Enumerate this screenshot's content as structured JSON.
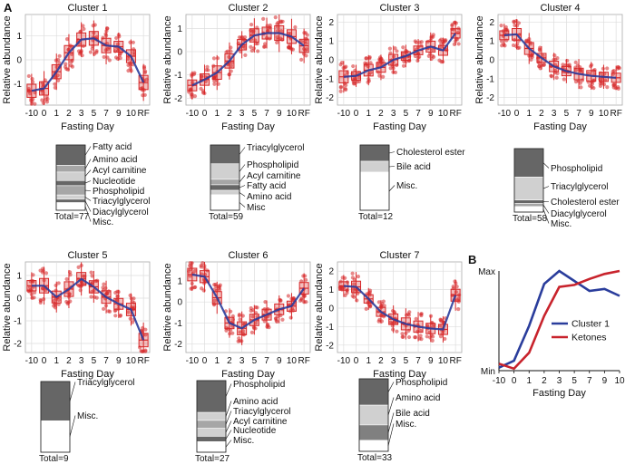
{
  "panel_labels": {
    "a": "A",
    "b": "B"
  },
  "chart_data": [
    {
      "type": "box",
      "title": "Cluster 1",
      "xlabel": "Fasting Day",
      "ylabel": "Relative abundance",
      "x_ticks": [
        "-10",
        "0",
        "1",
        "2",
        "3",
        "5",
        "7",
        "9",
        "10",
        "RF"
      ],
      "y_ticks": [
        "-1",
        "0",
        "1"
      ],
      "ylim": [
        -1.9,
        1.9
      ],
      "trend": [
        -1.3,
        -1.2,
        -0.5,
        0.3,
        0.85,
        0.9,
        0.6,
        0.55,
        0.15,
        -0.95
      ],
      "box_color": "#d62728",
      "trend_color": "#2a3d9c",
      "composition": {
        "total": "Total=77",
        "segments": [
          {
            "label": "Fatty acid",
            "value": 24,
            "color": "#666666"
          },
          {
            "label": "Amino acid",
            "value": 8,
            "color": "#a6a6a6"
          },
          {
            "label": "Acyl carnitine",
            "value": 10,
            "color": "#d0d0d0"
          },
          {
            "label": "Nucleotide",
            "value": 6,
            "color": "#666666"
          },
          {
            "label": "Phospholipid",
            "value": 11,
            "color": "#a6a6a6"
          },
          {
            "label": "Triacylglycerol",
            "value": 5,
            "color": "#d0d0d0"
          },
          {
            "label": "Diacylglycerol",
            "value": 4,
            "color": "#666666"
          },
          {
            "label": "Misc.",
            "value": 9,
            "color": "#ffffff"
          }
        ]
      }
    },
    {
      "type": "box",
      "title": "Cluster 2",
      "xlabel": "Fasting Day",
      "ylabel": "Relative abundance",
      "x_ticks": [
        "-10",
        "0",
        "1",
        "2",
        "3",
        "5",
        "7",
        "9",
        "10",
        "RF"
      ],
      "y_ticks": [
        "-2",
        "-1",
        "0",
        "1"
      ],
      "ylim": [
        -2.3,
        1.6
      ],
      "trend": [
        -1.45,
        -1.2,
        -0.9,
        -0.4,
        0.3,
        0.7,
        0.8,
        0.8,
        0.65,
        0.25
      ],
      "box_color": "#d62728",
      "trend_color": "#2a3d9c",
      "composition": {
        "total": "Total=59",
        "segments": [
          {
            "label": "Triacylglycerol",
            "value": 17,
            "color": "#666666"
          },
          {
            "label": "Phospholipid",
            "value": 14,
            "color": "#d0d0d0"
          },
          {
            "label": "Acyl carnitine",
            "value": 5,
            "color": "#a6a6a6"
          },
          {
            "label": "Fatty acid",
            "value": 5,
            "color": "#666666"
          },
          {
            "label": "Amino acid",
            "value": 4,
            "color": "#d0d0d0"
          },
          {
            "label": "Misc",
            "value": 14,
            "color": "#ffffff"
          }
        ]
      }
    },
    {
      "type": "box",
      "title": "Cluster 3",
      "xlabel": "Fasting Day",
      "ylabel": "Relative abundance",
      "x_ticks": [
        "-10",
        "0",
        "1",
        "2",
        "3",
        "5",
        "7",
        "9",
        "10",
        "RF"
      ],
      "y_ticks": [
        "-2",
        "-1",
        "0",
        "1",
        "2"
      ],
      "ylim": [
        -2.4,
        2.4
      ],
      "trend": [
        -0.9,
        -0.85,
        -0.55,
        -0.4,
        0.0,
        0.2,
        0.5,
        0.7,
        0.5,
        1.4
      ],
      "box_color": "#d62728",
      "trend_color": "#2a3d9c",
      "composition": {
        "total": "Total=12",
        "segments": [
          {
            "label": "Cholesterol ester",
            "value": 3,
            "color": "#666666"
          },
          {
            "label": "Bile acid",
            "value": 2,
            "color": "#d0d0d0"
          },
          {
            "label": "Misc.",
            "value": 7,
            "color": "#ffffff"
          }
        ]
      }
    },
    {
      "type": "box",
      "title": "Cluster 4",
      "xlabel": "Fasting Day",
      "ylabel": "Relative abundance",
      "x_ticks": [
        "-10",
        "0",
        "1",
        "2",
        "3",
        "5",
        "7",
        "9",
        "10",
        "RF"
      ],
      "y_ticks": [
        "-2",
        "-1",
        "0",
        "1",
        "2"
      ],
      "ylim": [
        -2.4,
        2.4
      ],
      "trend": [
        1.3,
        1.35,
        0.6,
        0.1,
        -0.35,
        -0.6,
        -0.75,
        -0.85,
        -0.9,
        -0.95
      ],
      "box_color": "#d62728",
      "trend_color": "#2a3d9c",
      "composition": {
        "total": "Total=58",
        "segments": [
          {
            "label": "Phospholipid",
            "value": 26,
            "color": "#666666"
          },
          {
            "label": "Triacylglycerol",
            "value": 21,
            "color": "#d0d0d0"
          },
          {
            "label": "Cholesterol ester",
            "value": 3,
            "color": "#666666"
          },
          {
            "label": "Diacylglycerol",
            "value": 3,
            "color": "#a6a6a6"
          },
          {
            "label": "Misc.",
            "value": 5,
            "color": "#ffffff"
          }
        ]
      }
    },
    {
      "type": "box",
      "title": "Cluster 5",
      "xlabel": "Fasting Day",
      "ylabel": "Relative abundance",
      "x_ticks": [
        "-10",
        "0",
        "1",
        "2",
        "3",
        "5",
        "7",
        "9",
        "10",
        "RF"
      ],
      "y_ticks": [
        "-2",
        "-1",
        "0",
        "1"
      ],
      "ylim": [
        -2.4,
        1.6
      ],
      "trend": [
        0.55,
        0.55,
        0.05,
        0.4,
        0.85,
        0.5,
        0.05,
        -0.25,
        -0.5,
        -1.85
      ],
      "box_color": "#d62728",
      "trend_color": "#2a3d9c",
      "composition": {
        "total": "Total=9",
        "segments": [
          {
            "label": "Triacylglycerol",
            "value": 5,
            "color": "#666666"
          },
          {
            "label": "Misc.",
            "value": 4,
            "color": "#ffffff"
          }
        ]
      }
    },
    {
      "type": "box",
      "title": "Cluster 6",
      "xlabel": "Fasting Day",
      "ylabel": "Relative abundance",
      "x_ticks": [
        "-10",
        "0",
        "1",
        "2",
        "3",
        "5",
        "7",
        "9",
        "10",
        "RF"
      ],
      "y_ticks": [
        "-2",
        "-1",
        "0",
        "1"
      ],
      "ylim": [
        -2.4,
        1.9
      ],
      "trend": [
        1.3,
        1.2,
        0.2,
        -1.0,
        -1.25,
        -0.85,
        -0.6,
        -0.35,
        -0.2,
        0.65
      ],
      "box_color": "#d62728",
      "trend_color": "#2a3d9c",
      "composition": {
        "total": "Total=27",
        "segments": [
          {
            "label": "Phospholipid",
            "value": 12,
            "color": "#666666"
          },
          {
            "label": "Amino acid",
            "value": 3,
            "color": "#d0d0d0"
          },
          {
            "label": "Triacylglycerol",
            "value": 3,
            "color": "#a6a6a6"
          },
          {
            "label": "Acyl carnitine",
            "value": 3,
            "color": "#d0d0d0"
          },
          {
            "label": "Nucleotide",
            "value": 2,
            "color": "#666666"
          },
          {
            "label": "Misc.",
            "value": 4,
            "color": "#ffffff"
          }
        ]
      }
    },
    {
      "type": "box",
      "title": "Cluster 7",
      "xlabel": "Fasting Day",
      "ylabel": "Relative abundance",
      "x_ticks": [
        "-10",
        "0",
        "1",
        "2",
        "3",
        "5",
        "7",
        "9",
        "10",
        "RF"
      ],
      "y_ticks": [
        "-2",
        "-1",
        "0",
        "1",
        "2"
      ],
      "ylim": [
        -2.4,
        2.5
      ],
      "trend": [
        1.2,
        1.15,
        0.5,
        -0.2,
        -0.6,
        -0.85,
        -1.0,
        -1.1,
        -1.15,
        0.7
      ],
      "box_color": "#d62728",
      "trend_color": "#2a3d9c",
      "composition": {
        "total": "Total=33",
        "segments": [
          {
            "label": "Phospholipid",
            "value": 12,
            "color": "#666666"
          },
          {
            "label": "Amino acid",
            "value": 9,
            "color": "#d0d0d0"
          },
          {
            "label": "Bile acid",
            "value": 7,
            "color": "#808080"
          },
          {
            "label": "Misc.",
            "value": 5,
            "color": "#ffffff"
          }
        ]
      }
    },
    {
      "type": "line",
      "xlabel": "Fasting Day",
      "y_tick_labels": [
        "Min",
        "Max"
      ],
      "x": [
        -10,
        0,
        1,
        2,
        3,
        5,
        7,
        9,
        10
      ],
      "series": [
        {
          "name": "Cluster 1",
          "color": "#2a3d9c",
          "values": [
            0.03,
            0.1,
            0.45,
            0.87,
            1.0,
            0.9,
            0.8,
            0.82,
            0.75
          ]
        },
        {
          "name": "Ketones",
          "color": "#c8232c",
          "values": [
            0.07,
            0.02,
            0.18,
            0.55,
            0.84,
            0.86,
            0.92,
            0.97,
            1.0
          ]
        }
      ]
    }
  ]
}
